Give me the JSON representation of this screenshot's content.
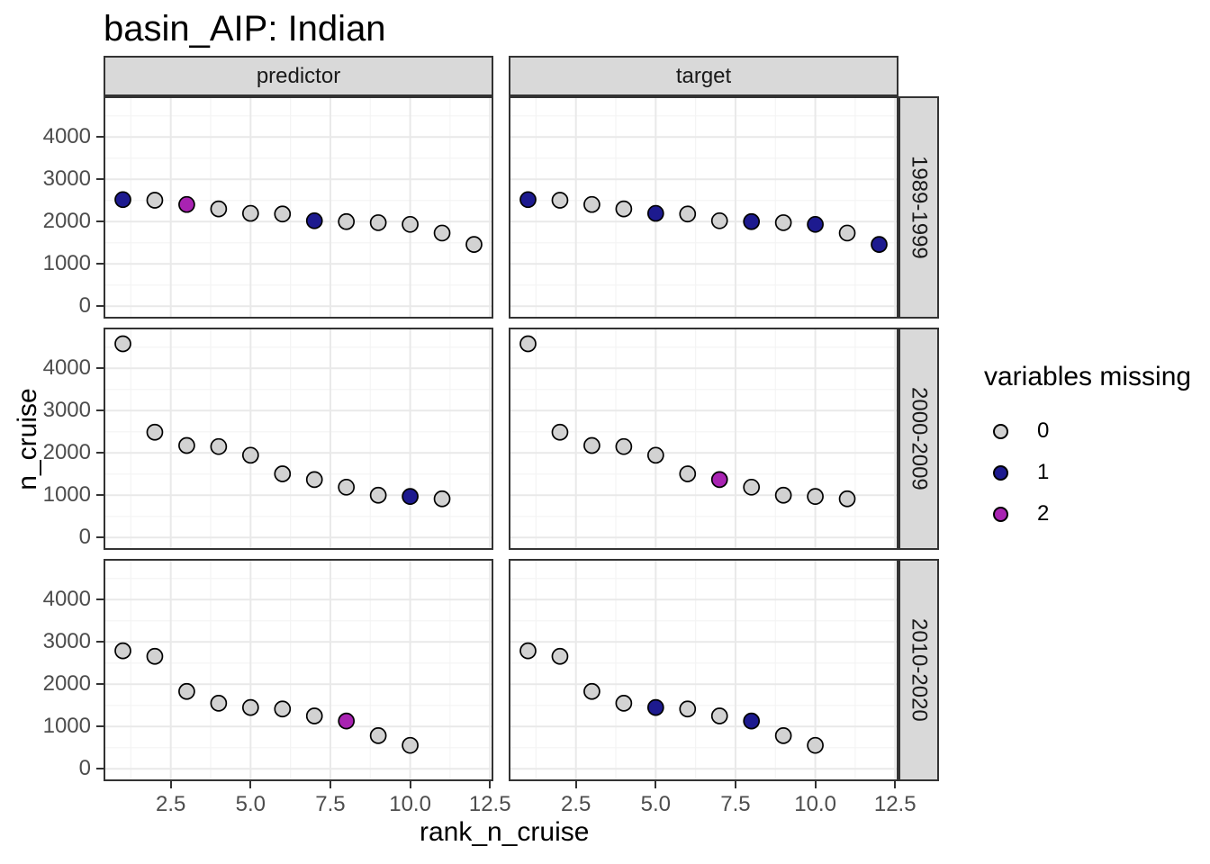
{
  "title": "basin_AIP: Indian",
  "chart_data": {
    "type": "scatter",
    "title": "basin_AIP: Indian",
    "xlabel": "rank_n_cruise",
    "ylabel": "n_cruise",
    "facet_cols": [
      "predictor",
      "target"
    ],
    "facet_rows": [
      "1989-1999",
      "2000-2009",
      "2010-2020"
    ],
    "x_domain": [
      0.45,
      12.55
    ],
    "y_domain": [
      -250,
      4920
    ],
    "x_ticks": [
      2.5,
      5.0,
      7.5,
      10.0,
      12.5
    ],
    "x_tick_labels": [
      "2.5",
      "5.0",
      "7.5",
      "10.0",
      "12.5"
    ],
    "x_minor": [
      1.25,
      3.75,
      6.25,
      8.75,
      11.25
    ],
    "y_ticks": [
      0,
      1000,
      2000,
      3000,
      4000
    ],
    "y_tick_labels": [
      "0",
      "1000",
      "2000",
      "3000",
      "4000"
    ],
    "y_minor": [
      500,
      1500,
      2500,
      3500,
      4500
    ],
    "grid": true,
    "color_map": {
      "0": "#d2d2d2",
      "1": "#1d1a8f",
      "2": "#a823b2"
    },
    "point_stroke": "#000000",
    "panels": [
      {
        "facet_col": "predictor",
        "facet_row": "1989-1999",
        "x": [
          1,
          2,
          3,
          4,
          5,
          6,
          7,
          8,
          9,
          10,
          11,
          12
        ],
        "y": [
          2520,
          2505,
          2405,
          2300,
          2195,
          2180,
          2020,
          2000,
          1975,
          1935,
          1730,
          1460
        ],
        "missing": [
          1,
          0,
          2,
          0,
          0,
          0,
          1,
          0,
          0,
          0,
          0,
          0
        ]
      },
      {
        "facet_col": "target",
        "facet_row": "1989-1999",
        "x": [
          1,
          2,
          3,
          4,
          5,
          6,
          7,
          8,
          9,
          10,
          11,
          12
        ],
        "y": [
          2520,
          2505,
          2405,
          2300,
          2195,
          2180,
          2020,
          2000,
          1975,
          1935,
          1730,
          1460
        ],
        "missing": [
          1,
          0,
          0,
          0,
          1,
          0,
          0,
          1,
          0,
          1,
          0,
          1
        ]
      },
      {
        "facet_col": "predictor",
        "facet_row": "2000-2009",
        "x": [
          1,
          2,
          3,
          4,
          5,
          6,
          7,
          8,
          9,
          10,
          11
        ],
        "y": [
          4580,
          2490,
          2175,
          2150,
          1945,
          1505,
          1370,
          1190,
          1000,
          970,
          915
        ],
        "missing": [
          0,
          0,
          0,
          0,
          0,
          0,
          0,
          0,
          0,
          1,
          0
        ]
      },
      {
        "facet_col": "target",
        "facet_row": "2000-2009",
        "x": [
          1,
          2,
          3,
          4,
          5,
          6,
          7,
          8,
          9,
          10,
          11
        ],
        "y": [
          4580,
          2490,
          2175,
          2150,
          1945,
          1505,
          1370,
          1190,
          1000,
          970,
          915
        ],
        "missing": [
          0,
          0,
          0,
          0,
          0,
          0,
          2,
          0,
          0,
          0,
          0
        ]
      },
      {
        "facet_col": "predictor",
        "facet_row": "2010-2020",
        "x": [
          1,
          2,
          3,
          4,
          5,
          6,
          7,
          8,
          9,
          10
        ],
        "y": [
          2790,
          2660,
          1830,
          1550,
          1450,
          1415,
          1250,
          1130,
          785,
          555
        ],
        "missing": [
          0,
          0,
          0,
          0,
          0,
          0,
          0,
          2,
          0,
          0
        ]
      },
      {
        "facet_col": "target",
        "facet_row": "2010-2020",
        "x": [
          1,
          2,
          3,
          4,
          5,
          6,
          7,
          8,
          9,
          10
        ],
        "y": [
          2790,
          2660,
          1830,
          1550,
          1450,
          1415,
          1250,
          1130,
          785,
          555
        ],
        "missing": [
          0,
          0,
          0,
          0,
          1,
          0,
          0,
          1,
          0,
          0
        ]
      }
    ],
    "legend": {
      "title": "variables missing",
      "position": "right",
      "entries": [
        {
          "label": "0",
          "color": "#d2d2d2"
        },
        {
          "label": "1",
          "color": "#1d1a8f"
        },
        {
          "label": "2",
          "color": "#a823b2"
        }
      ]
    }
  }
}
